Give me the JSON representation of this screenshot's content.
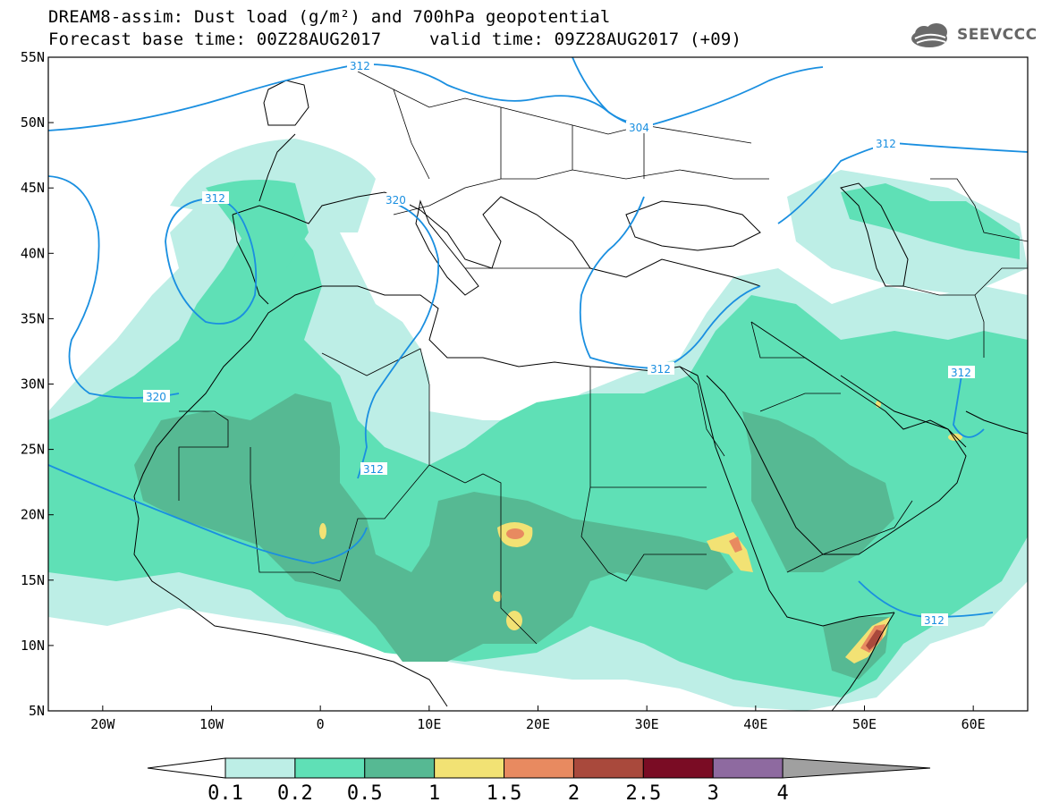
{
  "title": {
    "line1": "DREAM8-assim: Dust load (g/m²) and 700hPa geopotential",
    "line2_base": "Forecast base time: 00Z28AUG2017",
    "line2_valid": "valid time: 09Z28AUG2017 (+09)"
  },
  "logo": {
    "text": "SEEVCCC",
    "icon": "cloud-logo-icon"
  },
  "axes": {
    "lat_labels": [
      "55N",
      "50N",
      "45N",
      "40N",
      "35N",
      "30N",
      "25N",
      "20N",
      "15N",
      "10N",
      "5N"
    ],
    "lon_labels": [
      "20W",
      "10W",
      "0",
      "10E",
      "20E",
      "30E",
      "40E",
      "50E",
      "60E"
    ],
    "lat_range": [
      5,
      55
    ],
    "lon_range": [
      -25,
      65
    ]
  },
  "contour_labels": [
    "312",
    "304",
    "312",
    "312",
    "320",
    "312",
    "320",
    "312",
    "312",
    "312"
  ],
  "colorbar": {
    "labels": [
      "0.1",
      "0.2",
      "0.5",
      "1",
      "1.5",
      "2",
      "2.5",
      "3",
      "4"
    ],
    "colors": [
      "#ffffff",
      "#bdeee6",
      "#5fe0b6",
      "#56b993",
      "#f2e274",
      "#e88a60",
      "#a9493c",
      "#7a0c24",
      "#8e6aa0",
      "#a0a0a0"
    ]
  },
  "colors": {
    "contour_line": "#1a8fe0",
    "land_outline": "#000000"
  }
}
